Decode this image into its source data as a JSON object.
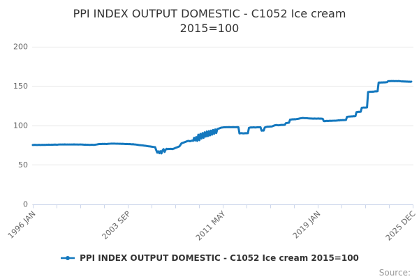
{
  "title": {
    "line1": "PPI INDEX OUTPUT DOMESTIC - C1052 Ice cream",
    "line2": "2015=100"
  },
  "legend": {
    "label": "PPI INDEX OUTPUT DOMESTIC - C1052 Ice cream 2015=100",
    "marker": "line-with-dot-icon"
  },
  "source": {
    "label": "Source:"
  },
  "colors": {
    "line": "#1478be",
    "grid": "#e6e6e6",
    "axis": "#ccd6eb",
    "tick_label": "#666666",
    "title": "#333333",
    "source": "#999999",
    "background": "#ffffff"
  },
  "chart_data": {
    "type": "line",
    "title": "PPI INDEX OUTPUT DOMESTIC - C1052 Ice cream 2015=100",
    "xlabel": "",
    "ylabel": "",
    "ylim": [
      0,
      200
    ],
    "y_ticks": [
      0,
      50,
      100,
      150,
      200
    ],
    "x_tick_labels": [
      "1996 JAN",
      "2003 SEP",
      "2011 MAY",
      "2019 JAN",
      "2025 DEC"
    ],
    "x_start": "1996 JAN",
    "x_end": "2025 DEC",
    "frequency": "monthly",
    "grid": true,
    "legend_position": "bottom",
    "series": [
      {
        "name": "PPI INDEX OUTPUT DOMESTIC - C1052 Ice cream 2015=100",
        "values": [
          74.9,
          75.0,
          75.1,
          75.0,
          74.9,
          75.0,
          75.1,
          74.9,
          75.0,
          75.1,
          75.0,
          75.1,
          75.0,
          75.2,
          75.1,
          75.3,
          75.2,
          75.1,
          75.3,
          75.2,
          75.3,
          75.4,
          75.3,
          75.2,
          75.4,
          75.5,
          75.6,
          75.5,
          75.6,
          75.5,
          75.7,
          75.6,
          75.5,
          75.6,
          75.5,
          75.6,
          75.5,
          75.6,
          75.5,
          75.7,
          75.6,
          75.5,
          75.6,
          75.4,
          75.5,
          75.6,
          75.5,
          75.4,
          75.3,
          75.2,
          75.3,
          75.1,
          75.2,
          75.1,
          75.0,
          75.1,
          75.2,
          75.1,
          75.0,
          75.2,
          75.4,
          75.6,
          75.9,
          76.1,
          76.2,
          76.1,
          76.3,
          76.2,
          76.3,
          76.2,
          76.1,
          76.3,
          76.4,
          76.5,
          76.6,
          76.7,
          76.6,
          76.7,
          76.6,
          76.5,
          76.6,
          76.5,
          76.4,
          76.5,
          76.3,
          76.4,
          76.3,
          76.2,
          76.1,
          76.2,
          76.1,
          76.0,
          76.1,
          75.9,
          75.8,
          75.9,
          75.7,
          75.6,
          75.4,
          75.2,
          75.0,
          74.8,
          74.7,
          74.5,
          74.4,
          74.2,
          74.0,
          73.9,
          73.6,
          73.4,
          73.2,
          73.1,
          72.9,
          72.7,
          72.5,
          72.3,
          72.1,
          68.5,
          65.2,
          66.9,
          64.4,
          67.1,
          64.2,
          68.0,
          69.6,
          66.1,
          69.0,
          70.1,
          69.6,
          70.0,
          69.8,
          70.1,
          69.7,
          70.0,
          70.4,
          71.0,
          71.5,
          72.0,
          72.6,
          73.1,
          75.0,
          77.0,
          77.5,
          78.0,
          78.4,
          79.0,
          79.5,
          80.0,
          80.1,
          79.6,
          80.0,
          80.5,
          80.1,
          84.0,
          80.6,
          84.9,
          80.1,
          88.0,
          81.0,
          89.0,
          83.1,
          90.0,
          84.0,
          91.0,
          85.6,
          92.0,
          86.1,
          92.5,
          87.0,
          93.1,
          88.0,
          94.0,
          89.1,
          94.6,
          90.1,
          95.1,
          95.6,
          96.0,
          96.6,
          97.0,
          97.1,
          97.3,
          97.4,
          97.3,
          97.5,
          97.4,
          97.6,
          97.5,
          97.4,
          97.5,
          97.6,
          97.5,
          97.4,
          97.5,
          97.6,
          97.5,
          89.6,
          89.8,
          90.0,
          89.7,
          89.6,
          89.8,
          89.9,
          89.8,
          89.9,
          96.6,
          97.0,
          97.2,
          97.1,
          97.3,
          97.2,
          97.1,
          97.2,
          97.4,
          97.3,
          97.4,
          97.3,
          93.1,
          93.4,
          93.2,
          97.1,
          97.6,
          98.0,
          98.2,
          98.1,
          98.4,
          98.3,
          98.5,
          99.1,
          99.6,
          100.0,
          100.2,
          100.0,
          99.9,
          100.0,
          100.2,
          100.4,
          100.3,
          100.4,
          100.5,
          102.6,
          102.8,
          103.0,
          103.2,
          107.1,
          107.2,
          107.5,
          107.4,
          107.6,
          107.5,
          107.8,
          108.0,
          108.2,
          108.5,
          108.8,
          109.0,
          109.2,
          109.1,
          108.9,
          109.0,
          108.9,
          108.7,
          108.6,
          108.5,
          108.5,
          108.4,
          108.3,
          108.5,
          108.4,
          108.3,
          108.4,
          108.5,
          108.3,
          108.4,
          108.3,
          108.1,
          105.2,
          105.1,
          105.4,
          105.5,
          105.3,
          105.5,
          105.6,
          105.5,
          105.6,
          105.7,
          105.8,
          105.7,
          105.9,
          106.0,
          106.2,
          106.1,
          106.4,
          106.3,
          106.5,
          106.4,
          106.5,
          106.6,
          110.6,
          110.8,
          111.0,
          110.9,
          111.2,
          111.1,
          111.4,
          111.3,
          111.5,
          116.6,
          116.8,
          117.0,
          116.9,
          117.1,
          122.1,
          122.3,
          122.5,
          122.3,
          122.5,
          122.6,
          142.1,
          142.3,
          142.5,
          142.4,
          142.6,
          142.5,
          142.8,
          143.0,
          142.9,
          143.1,
          154.1,
          154.2,
          154.1,
          154.3,
          154.2,
          154.4,
          154.3,
          154.5,
          154.6,
          155.9,
          156.0,
          155.9,
          156.1,
          156.0,
          156.1,
          155.9,
          156.0,
          156.0,
          155.9,
          156.1,
          155.9,
          155.7,
          155.5,
          155.6,
          155.4,
          155.5,
          155.3,
          155.4,
          155.2,
          155.3,
          155.1,
          155.3
        ]
      }
    ]
  }
}
